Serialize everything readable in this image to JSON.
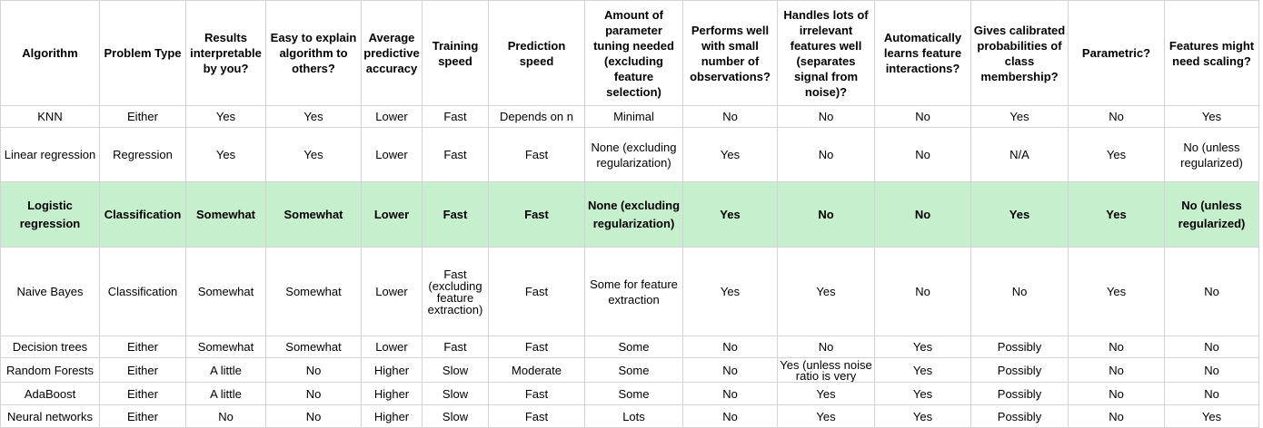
{
  "colors": {
    "highlight": "#c6efce",
    "gridline": "#d4d4d4"
  },
  "header": [
    "Algorithm",
    "Problem Type",
    "Results interpretable by you?",
    "Easy to explain algorithm to others?",
    "Average predictive accuracy",
    "Training speed",
    "Prediction speed",
    "Amount of parameter tuning needed (excluding feature selection)",
    "Performs well with small number of observations?",
    "Handles lots of irrelevant features well (separates signal from noise)?",
    "Automatically learns feature interactions?",
    "Gives calibrated probabilities of class membership?",
    "Parametric?",
    "Features might need scaling?"
  ],
  "rows": [
    [
      "KNN",
      "Either",
      "Yes",
      "Yes",
      "Lower",
      "Fast",
      "Depends on n",
      "Minimal",
      "No",
      "No",
      "No",
      "Yes",
      "No",
      "Yes"
    ],
    [
      "Linear regression",
      "Regression",
      "Yes",
      "Yes",
      "Lower",
      "Fast",
      "Fast",
      "None (excluding regularization)",
      "Yes",
      "No",
      "No",
      "N/A",
      "Yes",
      "No (unless regularized)"
    ],
    [
      "Logistic regression",
      "Classification",
      "Somewhat",
      "Somewhat",
      "Lower",
      "Fast",
      "Fast",
      "None (excluding regularization)",
      "Yes",
      "No",
      "No",
      "Yes",
      "Yes",
      "No (unless regularized)"
    ],
    [
      "Naive Bayes",
      "Classification",
      "Somewhat",
      "Somewhat",
      "Lower",
      "Fast (excluding feature extraction)",
      "Fast",
      "Some for feature extraction",
      "Yes",
      "Yes",
      "No",
      "No",
      "Yes",
      "No"
    ],
    [
      "Decision trees",
      "Either",
      "Somewhat",
      "Somewhat",
      "Lower",
      "Fast",
      "Fast",
      "Some",
      "No",
      "No",
      "Yes",
      "Possibly",
      "No",
      "No"
    ],
    [
      "Random Forests",
      "Either",
      "A little",
      "No",
      "Higher",
      "Slow",
      "Moderate",
      "Some",
      "No",
      "Yes (unless noise ratio is very",
      "Yes",
      "Possibly",
      "No",
      "No"
    ],
    [
      "AdaBoost",
      "Either",
      "A little",
      "No",
      "Higher",
      "Slow",
      "Fast",
      "Some",
      "No",
      "Yes",
      "Yes",
      "Possibly",
      "No",
      "No"
    ],
    [
      "Neural networks",
      "Either",
      "No",
      "No",
      "Higher",
      "Slow",
      "Fast",
      "Lots",
      "No",
      "Yes",
      "Yes",
      "Possibly",
      "No",
      "Yes"
    ]
  ]
}
